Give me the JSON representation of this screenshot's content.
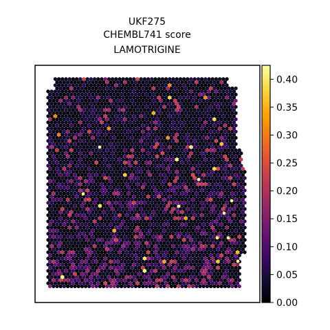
{
  "chart_data": {
    "type": "scatter",
    "title_lines": [
      "UKF275",
      "CHEMBL741 score",
      "LAMOTRIGINE"
    ],
    "xlabel": "",
    "ylabel": "",
    "grid": false,
    "colormap": "inferno",
    "colorbar": {
      "range": [
        0.0,
        0.425
      ],
      "ticks": [
        0.0,
        0.05,
        0.1,
        0.15,
        0.2,
        0.25,
        0.3,
        0.35,
        0.4
      ],
      "tick_labels": [
        "0.00",
        "0.05",
        "0.10",
        "0.15",
        "0.20",
        "0.25",
        "0.30",
        "0.35",
        "0.40"
      ]
    },
    "description_of_marks": "hexagonal grid of spatial spots; most values near 0.00–0.10, scattered spots up to ~0.42"
  }
}
